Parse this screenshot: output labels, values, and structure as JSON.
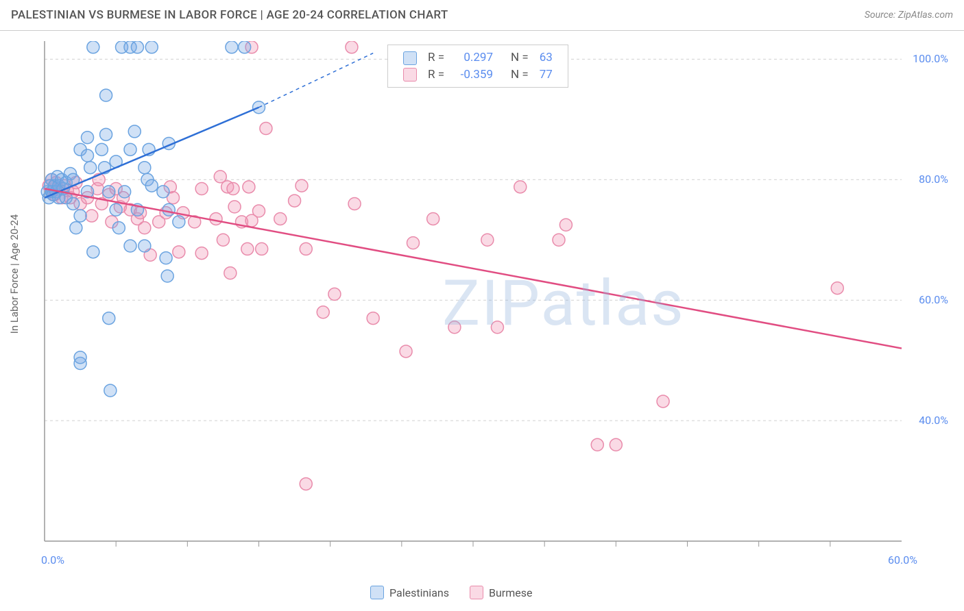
{
  "title": "PALESTINIAN VS BURMESE IN LABOR FORCE | AGE 20-24 CORRELATION CHART",
  "source": "Source: ZipAtlas.com",
  "y_axis_label": "In Labor Force | Age 20-24",
  "watermark": "ZIPatlas",
  "chart": {
    "type": "scatter",
    "xlim": [
      0,
      60
    ],
    "ylim": [
      20,
      103
    ],
    "x_ticks": [
      0,
      60
    ],
    "x_tick_labels": [
      "0.0%",
      "60.0%"
    ],
    "x_minor_ticks": [
      5,
      10,
      15,
      20,
      25,
      30,
      35,
      40,
      45,
      50,
      55
    ],
    "y_ticks": [
      40,
      60,
      80,
      100
    ],
    "y_tick_labels": [
      "40.0%",
      "60.0%",
      "80.0%",
      "100.0%"
    ],
    "grid_color": "#d0d0d0",
    "axis_color": "#999999",
    "background_color": "#ffffff",
    "marker_radius": 9,
    "marker_stroke_width": 1.5,
    "trend_line_width": 2.5,
    "series": {
      "palestinians": {
        "label": "Palestinians",
        "fill": "rgba(120,170,230,0.35)",
        "stroke": "#6aa3e0",
        "trend_color": "#2e6fd6",
        "R": "0.297",
        "N": "63",
        "trend_line": {
          "x1": 0,
          "y1": 77,
          "x2": 15,
          "y2": 92
        },
        "trend_dashed_ext": {
          "x1": 15,
          "y1": 92,
          "x2": 23,
          "y2": 101
        },
        "points": [
          [
            0.2,
            78
          ],
          [
            0.3,
            77
          ],
          [
            0.4,
            79
          ],
          [
            0.5,
            80
          ],
          [
            0.5,
            78
          ],
          [
            0.6,
            77.5
          ],
          [
            0.7,
            79
          ],
          [
            0.8,
            78
          ],
          [
            0.9,
            80.5
          ],
          [
            1.0,
            77
          ],
          [
            1.0,
            79
          ],
          [
            1.2,
            80
          ],
          [
            1.3,
            78.5
          ],
          [
            1.5,
            77
          ],
          [
            1.5,
            79.5
          ],
          [
            1.8,
            81
          ],
          [
            2.0,
            76
          ],
          [
            2.0,
            80
          ],
          [
            2.2,
            72
          ],
          [
            2.5,
            74
          ],
          [
            2.5,
            85
          ],
          [
            2.5,
            49.5
          ],
          [
            2.5,
            50.5
          ],
          [
            3.0,
            84
          ],
          [
            3.0,
            87
          ],
          [
            3.0,
            78
          ],
          [
            3.2,
            82
          ],
          [
            3.4,
            68
          ],
          [
            3.4,
            102
          ],
          [
            4.0,
            85
          ],
          [
            4.2,
            82
          ],
          [
            4.3,
            94
          ],
          [
            4.3,
            87.5
          ],
          [
            4.5,
            78
          ],
          [
            4.5,
            57
          ],
          [
            4.6,
            45
          ],
          [
            5.0,
            83
          ],
          [
            5.0,
            75
          ],
          [
            5.2,
            72
          ],
          [
            5.4,
            102
          ],
          [
            5.6,
            78
          ],
          [
            6.0,
            85
          ],
          [
            6.0,
            69
          ],
          [
            6.0,
            102
          ],
          [
            6.3,
            88
          ],
          [
            6.5,
            75
          ],
          [
            6.5,
            102
          ],
          [
            7.0,
            82
          ],
          [
            7.0,
            69
          ],
          [
            7.2,
            80
          ],
          [
            7.3,
            85
          ],
          [
            7.5,
            79
          ],
          [
            7.5,
            102
          ],
          [
            8.3,
            78
          ],
          [
            8.5,
            67
          ],
          [
            8.6,
            64
          ],
          [
            8.7,
            75
          ],
          [
            8.7,
            86
          ],
          [
            9.4,
            73
          ],
          [
            13.1,
            102
          ],
          [
            14.0,
            102
          ],
          [
            15.0,
            92
          ]
        ]
      },
      "burmese": {
        "label": "Burmese",
        "fill": "rgba(240,150,180,0.35)",
        "stroke": "#e98bab",
        "trend_color": "#e14d82",
        "R": "-0.359",
        "N": "77",
        "trend_line": {
          "x1": 0,
          "y1": 78.5,
          "x2": 60,
          "y2": 52
        },
        "points": [
          [
            0.3,
            79
          ],
          [
            0.5,
            78
          ],
          [
            0.5,
            80
          ],
          [
            0.7,
            77.5
          ],
          [
            0.8,
            79.5
          ],
          [
            1.0,
            78.3
          ],
          [
            1.2,
            77
          ],
          [
            1.4,
            79
          ],
          [
            1.6,
            78.2
          ],
          [
            1.8,
            77
          ],
          [
            2.0,
            78
          ],
          [
            2.2,
            79.5
          ],
          [
            2.5,
            76
          ],
          [
            3.0,
            77
          ],
          [
            3.3,
            74
          ],
          [
            3.7,
            78.5
          ],
          [
            3.8,
            80
          ],
          [
            4.0,
            76
          ],
          [
            4.5,
            77.5
          ],
          [
            4.7,
            73
          ],
          [
            5.0,
            78.5
          ],
          [
            5.3,
            75.5
          ],
          [
            5.5,
            77
          ],
          [
            6.0,
            75
          ],
          [
            6.5,
            73.5
          ],
          [
            6.7,
            74.5
          ],
          [
            7.0,
            72
          ],
          [
            7.4,
            67.5
          ],
          [
            8.0,
            73
          ],
          [
            8.5,
            74.5
          ],
          [
            8.8,
            78.8
          ],
          [
            9.0,
            77
          ],
          [
            9.4,
            68
          ],
          [
            9.7,
            74.5
          ],
          [
            10.5,
            73
          ],
          [
            11.0,
            78.5
          ],
          [
            11.0,
            67.8
          ],
          [
            12.0,
            73.5
          ],
          [
            12.3,
            80.5
          ],
          [
            12.5,
            70
          ],
          [
            12.8,
            78.8
          ],
          [
            13.0,
            64.5
          ],
          [
            13.2,
            78.5
          ],
          [
            13.3,
            75.5
          ],
          [
            13.8,
            73
          ],
          [
            14.2,
            68.5
          ],
          [
            14.3,
            78.8
          ],
          [
            14.5,
            73.2
          ],
          [
            14.5,
            102
          ],
          [
            15.0,
            74.8
          ],
          [
            15.2,
            68.5
          ],
          [
            15.5,
            88.5
          ],
          [
            16.5,
            73.5
          ],
          [
            17.5,
            76.5
          ],
          [
            18.0,
            79
          ],
          [
            18.3,
            29.5
          ],
          [
            18.3,
            68.5
          ],
          [
            19.5,
            58
          ],
          [
            20.3,
            61
          ],
          [
            21.5,
            102
          ],
          [
            21.7,
            76
          ],
          [
            23.0,
            57
          ],
          [
            25.3,
            51.5
          ],
          [
            25.8,
            69.5
          ],
          [
            27.2,
            73.5
          ],
          [
            28.7,
            55.5
          ],
          [
            31.0,
            70
          ],
          [
            31.7,
            55.5
          ],
          [
            33.3,
            78.8
          ],
          [
            36.0,
            70
          ],
          [
            36.5,
            72.5
          ],
          [
            38.7,
            36
          ],
          [
            40.0,
            36
          ],
          [
            43.3,
            43.2
          ],
          [
            55.5,
            62
          ]
        ]
      }
    }
  },
  "legend_top": {
    "rows": [
      {
        "swatch_fill": "rgba(120,170,230,0.35)",
        "swatch_stroke": "#6aa3e0",
        "R_label": "R =",
        "R_val": "0.297",
        "N_label": "N =",
        "N_val": "63"
      },
      {
        "swatch_fill": "rgba(240,150,180,0.35)",
        "swatch_stroke": "#e98bab",
        "R_label": "R =",
        "R_val": "-0.359",
        "N_label": "N =",
        "N_val": "77"
      }
    ],
    "text_color": "#555555",
    "value_color": "#5b8def"
  },
  "legend_bottom": {
    "items": [
      {
        "label": "Palestinians",
        "swatch_fill": "rgba(120,170,230,0.35)",
        "swatch_stroke": "#6aa3e0"
      },
      {
        "label": "Burmese",
        "swatch_fill": "rgba(240,150,180,0.35)",
        "swatch_stroke": "#e98bab"
      }
    ]
  }
}
